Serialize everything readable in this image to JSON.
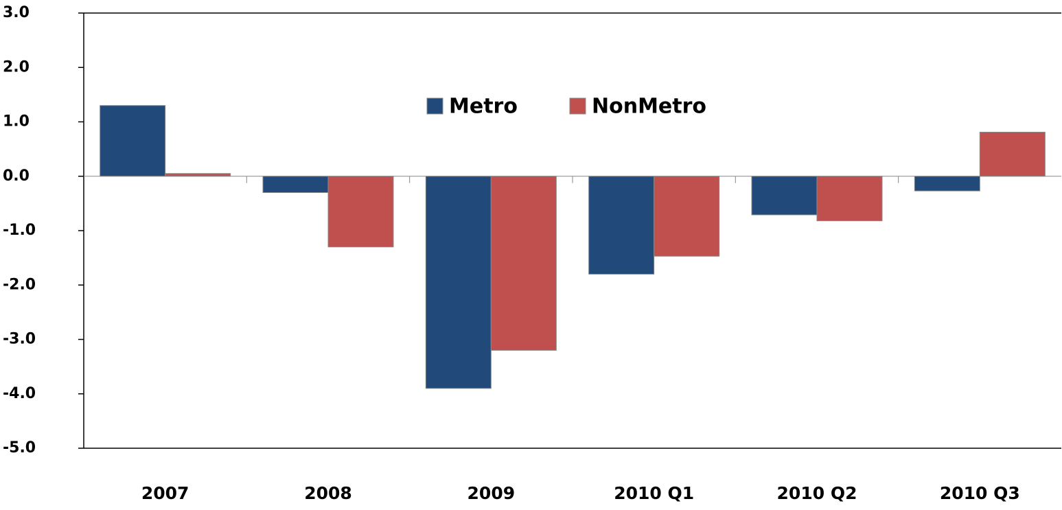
{
  "chart_data": {
    "type": "bar",
    "categories": [
      "2007",
      "2008",
      "2009",
      "2010 Q1",
      "2010 Q2",
      "2010 Q3"
    ],
    "series": [
      {
        "name": "Metro",
        "color": "#214a7b",
        "values": [
          1.3,
          -0.3,
          -3.9,
          -1.8,
          -0.71,
          -0.27
        ]
      },
      {
        "name": "NonMetro",
        "color": "#c0504d",
        "values": [
          0.05,
          -1.3,
          -3.2,
          -1.47,
          -0.82,
          0.81
        ]
      }
    ],
    "ylim": [
      -5,
      3
    ],
    "yticks": [
      {
        "value": -5,
        "label": "-5.0"
      },
      {
        "value": -4,
        "label": "-4.0"
      },
      {
        "value": -3,
        "label": "-3.0"
      },
      {
        "value": -2,
        "label": "-2.0"
      },
      {
        "value": -1,
        "label": "-1.0"
      },
      {
        "value": 0,
        "label": "0.0"
      },
      {
        "value": 1,
        "label": "1.0"
      },
      {
        "value": 2,
        "label": "2.0"
      },
      {
        "value": 3,
        "label": "3.0"
      }
    ],
    "grid": false,
    "legend": "top"
  }
}
